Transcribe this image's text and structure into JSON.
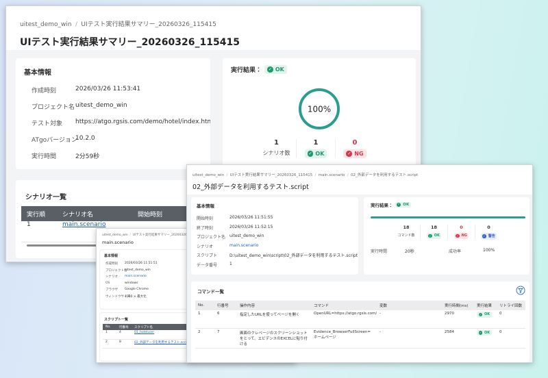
{
  "summary": {
    "breadcrumb": [
      "uitest_demo_win",
      "UIテスト実行結果サマリー_20260326_115415"
    ],
    "title": "UIテスト実行結果サマリー_20260326_115415",
    "info": {
      "heading": "基本情報",
      "rows": [
        {
          "label": "作成時刻",
          "value": "2026/03/26 11:53:41"
        },
        {
          "label": "プロジェクト名",
          "value": "uitest_demo_win"
        },
        {
          "label": "テスト対象",
          "value": "https://atgo.rgsis.com/demo/hotel/index.html"
        },
        {
          "label": "ATgoバージョン",
          "value": "10.2.0"
        },
        {
          "label": "実行時間",
          "value": "2分59秒"
        }
      ]
    },
    "result": {
      "heading": "実行結果：",
      "status": "OK",
      "percent": "100%",
      "stats": [
        {
          "value": "1",
          "label": "シナリオ数"
        },
        {
          "value": "1",
          "label": "OK",
          "color": "#1c9a6c"
        },
        {
          "value": "0",
          "label": "NG",
          "color": "#d9344c",
          "value_color": "#d9344c"
        }
      ]
    },
    "scenarios": {
      "heading": "シナリオ一覧",
      "columns": [
        "実行順",
        "シナリオ名",
        "開始時刻"
      ],
      "rows": [
        [
          "1",
          "main.scenario"
        ]
      ]
    }
  },
  "scenario_page": {
    "breadcrumb": [
      "uitest_demo_win",
      "UIテスト実行結果サマリー_20260326_115415",
      "main.scenario"
    ],
    "title": "main.scenario",
    "info": {
      "heading": "基本情報",
      "rows": [
        {
          "label": "作成時刻",
          "value": "2026/03/26 11:51:51"
        },
        {
          "label": "プロジェクト名",
          "value": "uitest_demo_win"
        },
        {
          "label": "シナリオ",
          "value": "main.scenario"
        },
        {
          "label": "OS",
          "value": "windows"
        },
        {
          "label": "ブラウザ",
          "value": "Google Chrome"
        },
        {
          "label": "ウィンドウサイズ",
          "value": "1080 × 最大化"
        }
      ]
    },
    "scripts": {
      "heading": "スクリプト一覧",
      "columns": [
        "No.",
        "行番号",
        "スクリプト名",
        "開始"
      ],
      "rows": [
        [
          "1",
          "4",
          "01_hoteluser",
          "20"
        ],
        [
          "2",
          "8",
          "02_外部データを利用するテスト.script",
          "20"
        ]
      ]
    }
  },
  "script_page": {
    "breadcrumb": [
      "uitest_demo_win",
      "UIテスト実行結果サマリー_20260326_115415",
      "main.scenario",
      "02_外部データを利用するテスト.script"
    ],
    "title": "02_外部データを利用するテスト.script",
    "info": {
      "heading": "基本情報",
      "rows": [
        {
          "label": "開始時刻",
          "value": "2026/03/26 11:51:55"
        },
        {
          "label": "終了時刻",
          "value": "2026/03/26 11:52:15"
        },
        {
          "label": "プロジェクト名",
          "value": "uitest_demo_win"
        },
        {
          "label": "シナリオ",
          "value": "main.scenario"
        },
        {
          "label": "スクリプト",
          "value": "D:\\uitest_demo_win\\script\\02_外部データを利用するテスト.script"
        },
        {
          "label": "データ番号",
          "value": "1"
        }
      ]
    },
    "result": {
      "heading": "実行結果：",
      "status": "OK",
      "stats": [
        {
          "value": "18",
          "label": "コマンド数"
        },
        {
          "value": "18",
          "label": "OK",
          "color": "#1c9a6c"
        },
        {
          "value": "0",
          "label": "NG",
          "color": "#d9344c",
          "value_color": "#d9344c"
        },
        {
          "value": "0",
          "label": "警告",
          "color": "#3566c8"
        }
      ],
      "extra": [
        {
          "label": "実行時間",
          "value": "20秒"
        },
        {
          "label": "成功率",
          "value": "100%"
        }
      ]
    },
    "commands": {
      "heading": "コマンド一覧",
      "columns": [
        "No.",
        "行番号",
        "操作内容",
        "コマンド",
        "変数",
        "実行時間(ms)",
        "実行結果",
        "リトライ回数"
      ],
      "rows": [
        [
          "1",
          "6",
          "指定したURLを使ってページを開く",
          "OpenURL=https://atgo.rgsis.com/demo/hotel/index.html",
          "-",
          "2970",
          "OK",
          "0"
        ],
        [
          "2",
          "7",
          "画面のクレベージのスクリーンショットをとって、エビデンスのEXCELに貼り付ける",
          "Evidence_BrowserFullScreen=ホームページ",
          "-",
          "2584",
          "OK",
          "0"
        ]
      ]
    }
  }
}
